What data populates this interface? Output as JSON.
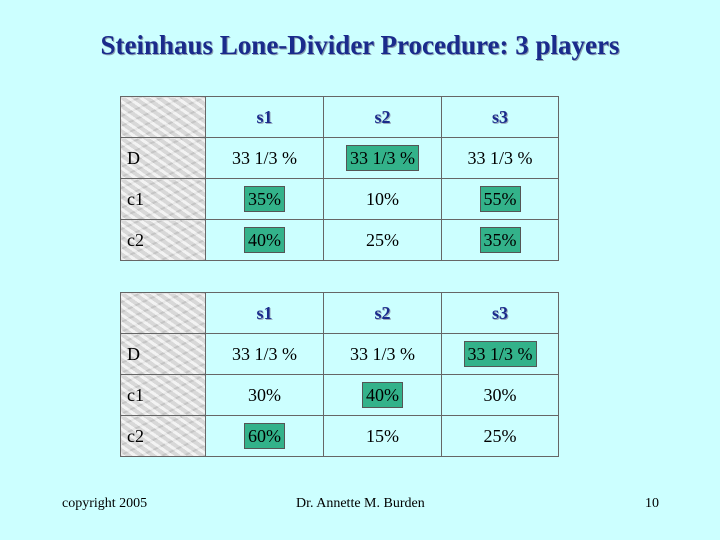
{
  "title": "Steinhaus Lone-Divider Procedure: 3 players",
  "table1": {
    "columns": [
      "s1",
      "s2",
      "s3"
    ],
    "rows": [
      {
        "label": "D",
        "cells": [
          "33 1/3 %",
          "33 1/3 %",
          "33 1/3 %"
        ]
      },
      {
        "label": "c1",
        "cells": [
          "35%",
          "10%",
          "55%"
        ]
      },
      {
        "label": "c2",
        "cells": [
          "40%",
          "25%",
          "35%"
        ]
      }
    ]
  },
  "table2": {
    "columns": [
      "s1",
      "s2",
      "s3"
    ],
    "rows": [
      {
        "label": "D",
        "cells": [
          "33 1/3 %",
          "33 1/3 %",
          "33 1/3 %"
        ]
      },
      {
        "label": "c1",
        "cells": [
          "30%",
          "40%",
          "30%"
        ]
      },
      {
        "label": "c2",
        "cells": [
          "60%",
          "15%",
          "25%"
        ]
      }
    ]
  },
  "highlight_color": "#33b28a",
  "background_color": "#ccffff",
  "title_color": "#1a2b8c",
  "footer": {
    "copyright": "copyright 2005",
    "author": "Dr. Annette M. Burden",
    "page": "10"
  }
}
